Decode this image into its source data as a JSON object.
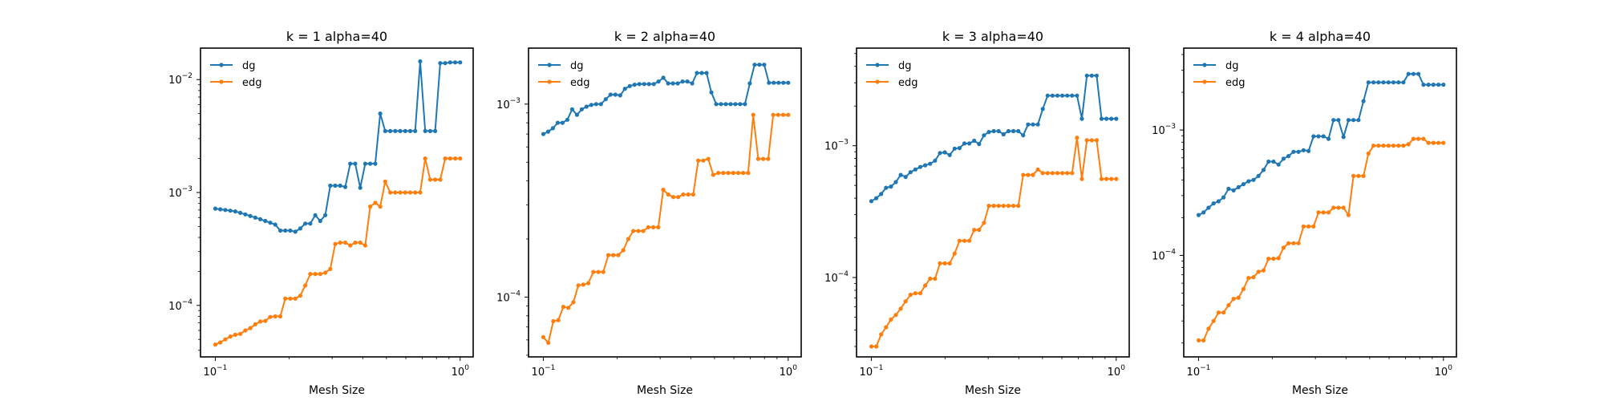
{
  "chart_data": [
    {
      "type": "line",
      "title": "k = 1 alpha=40",
      "xlabel": "Mesh Size",
      "ylabel": "",
      "xscale": "log",
      "yscale": "log",
      "xlim": [
        0.087,
        1.13
      ],
      "ylim": [
        3.5e-05,
        0.019
      ],
      "xticks": [
        {
          "base": "10",
          "exp": "−1",
          "value": 0.1
        },
        {
          "base": "10",
          "exp": "0",
          "value": 1
        }
      ],
      "yticks": [
        {
          "base": "10",
          "exp": "−4",
          "value": 0.0001
        },
        {
          "base": "10",
          "exp": "−3",
          "value": 0.001
        },
        {
          "base": "10",
          "exp": "−2",
          "value": 0.01
        }
      ],
      "legend_position": "top-left",
      "grid": false,
      "series": [
        {
          "name": "dg",
          "color": "#1f77b4",
          "values": [
            0.00072,
            0.00071,
            0.0007,
            0.00069,
            0.00068,
            0.00066,
            0.00064,
            0.00062,
            0.0006,
            0.00058,
            0.00056,
            0.00054,
            0.00052,
            0.00046,
            0.00046,
            0.00046,
            0.00045,
            0.00048,
            0.00053,
            0.00053,
            0.00063,
            0.00056,
            0.00063,
            0.00115,
            0.00115,
            0.00115,
            0.00112,
            0.0018,
            0.0018,
            0.0011,
            0.0018,
            0.0018,
            0.0018,
            0.005,
            0.0035,
            0.0035,
            0.0035,
            0.0035,
            0.0035,
            0.0035,
            0.0035,
            0.0145,
            0.0035,
            0.0035,
            0.0035,
            0.014,
            0.014,
            0.0142,
            0.0142,
            0.0142
          ]
        },
        {
          "name": "edg",
          "color": "#ff7f0e",
          "values": [
            4.5e-05,
            4.7e-05,
            5e-05,
            5.3e-05,
            5.5e-05,
            5.6e-05,
            6e-05,
            6.3e-05,
            6.8e-05,
            7.2e-05,
            7.3e-05,
            7.9e-05,
            8e-05,
            8e-05,
            0.000115,
            0.000115,
            0.000115,
            0.000122,
            0.00015,
            0.00019,
            0.00019,
            0.00019,
            0.000195,
            0.00021,
            0.00035,
            0.00036,
            0.00036,
            0.00034,
            0.00036,
            0.00036,
            0.00034,
            0.00075,
            0.00081,
            0.00075,
            0.00125,
            0.001,
            0.001,
            0.001,
            0.001,
            0.001,
            0.001,
            0.001,
            0.002,
            0.0013,
            0.0013,
            0.0013,
            0.002,
            0.002,
            0.002,
            0.002
          ]
        }
      ]
    },
    {
      "type": "line",
      "title": "k = 2 alpha=40",
      "xlabel": "Mesh Size",
      "ylabel": "",
      "xscale": "log",
      "yscale": "log",
      "xlim": [
        0.087,
        1.13
      ],
      "ylim": [
        4.9e-05,
        0.00195
      ],
      "xticks": [
        {
          "base": "10",
          "exp": "−1",
          "value": 0.1
        },
        {
          "base": "10",
          "exp": "0",
          "value": 1
        }
      ],
      "yticks": [
        {
          "base": "10",
          "exp": "−4",
          "value": 0.0001
        },
        {
          "base": "10",
          "exp": "−3",
          "value": 0.001
        }
      ],
      "legend_position": "top-left",
      "grid": false,
      "series": [
        {
          "name": "dg",
          "color": "#1f77b4",
          "values": [
            0.0007,
            0.00072,
            0.00075,
            0.0008,
            0.0008,
            0.00083,
            0.00094,
            0.00088,
            0.00094,
            0.00097,
            0.00099,
            0.001,
            0.001,
            0.00106,
            0.00112,
            0.00112,
            0.00111,
            0.0012,
            0.00124,
            0.00126,
            0.00127,
            0.00127,
            0.00127,
            0.00127,
            0.00131,
            0.00137,
            0.00128,
            0.00128,
            0.00128,
            0.00131,
            0.00131,
            0.00128,
            0.00145,
            0.00145,
            0.00145,
            0.00115,
            0.001,
            0.001,
            0.001,
            0.001,
            0.001,
            0.001,
            0.001,
            0.00128,
            0.0016,
            0.0016,
            0.0016,
            0.00129,
            0.00129,
            0.00129,
            0.00129,
            0.00129
          ]
        },
        {
          "name": "edg",
          "color": "#ff7f0e",
          "values": [
            6.2e-05,
            5.8e-05,
            7.5e-05,
            7.6e-05,
            8.9e-05,
            8.8e-05,
            9.4e-05,
            0.000115,
            0.000116,
            0.000118,
            0.000135,
            0.000135,
            0.000135,
            0.000165,
            0.000165,
            0.000165,
            0.000175,
            0.0002,
            0.00022,
            0.00022,
            0.00022,
            0.00023,
            0.00023,
            0.00023,
            0.00036,
            0.00034,
            0.00033,
            0.00033,
            0.00034,
            0.00034,
            0.00034,
            0.00051,
            0.00051,
            0.00052,
            0.00043,
            0.00044,
            0.00044,
            0.00044,
            0.00044,
            0.00044,
            0.00044,
            0.00044,
            0.00088,
            0.00052,
            0.00052,
            0.00052,
            0.00088,
            0.00088,
            0.00088,
            0.00088
          ]
        }
      ]
    },
    {
      "type": "line",
      "title": "k = 3 alpha=40",
      "xlabel": "Mesh Size",
      "ylabel": "",
      "xscale": "log",
      "yscale": "log",
      "xlim": [
        0.087,
        1.13
      ],
      "ylim": [
        2.5e-05,
        0.0055
      ],
      "xticks": [
        {
          "base": "10",
          "exp": "−1",
          "value": 0.1
        },
        {
          "base": "10",
          "exp": "0",
          "value": 1
        }
      ],
      "yticks": [
        {
          "base": "10",
          "exp": "−4",
          "value": 0.0001
        },
        {
          "base": "10",
          "exp": "−3",
          "value": 0.001
        }
      ],
      "legend_position": "top-left",
      "grid": false,
      "series": [
        {
          "name": "dg",
          "color": "#1f77b4",
          "values": [
            0.00038,
            0.0004,
            0.00043,
            0.00048,
            0.00049,
            0.00053,
            0.0006,
            0.00058,
            0.00063,
            0.00066,
            0.00069,
            0.00071,
            0.00073,
            0.00077,
            0.00088,
            0.00089,
            0.00085,
            0.00095,
            0.00096,
            0.00104,
            0.00104,
            0.00109,
            0.00103,
            0.0012,
            0.00127,
            0.00129,
            0.00129,
            0.00122,
            0.00129,
            0.00129,
            0.00129,
            0.0012,
            0.00145,
            0.00145,
            0.00145,
            0.0019,
            0.0024,
            0.0024,
            0.0024,
            0.0024,
            0.0024,
            0.0024,
            0.0024,
            0.0016,
            0.0034,
            0.0034,
            0.0034,
            0.0016,
            0.0016,
            0.0016,
            0.0016
          ]
        },
        {
          "name": "edg",
          "color": "#ff7f0e",
          "values": [
            3e-05,
            3e-05,
            3.7e-05,
            4.2e-05,
            4.8e-05,
            5.2e-05,
            5.8e-05,
            6.6e-05,
            7.4e-05,
            7.6e-05,
            7.6e-05,
            8.7e-05,
            9.8e-05,
            9.8e-05,
            0.000128,
            0.000128,
            0.000128,
            0.000152,
            0.00019,
            0.00019,
            0.00019,
            0.00023,
            0.00023,
            0.00026,
            0.00035,
            0.00035,
            0.00035,
            0.00035,
            0.00035,
            0.00035,
            0.00035,
            0.0006,
            0.0006,
            0.0006,
            0.00066,
            0.00062,
            0.00062,
            0.00062,
            0.00062,
            0.00062,
            0.00062,
            0.00062,
            0.00115,
            0.00056,
            0.0011,
            0.0011,
            0.0011,
            0.00056,
            0.00056,
            0.00056,
            0.00056
          ]
        }
      ]
    },
    {
      "type": "line",
      "title": "k = 4 alpha=40",
      "xlabel": "Mesh Size",
      "ylabel": "",
      "xscale": "log",
      "yscale": "log",
      "xlim": [
        0.087,
        1.13
      ],
      "ylim": [
        1.55e-05,
        0.0045
      ],
      "xticks": [
        {
          "base": "10",
          "exp": "−1",
          "value": 0.1
        },
        {
          "base": "10",
          "exp": "0",
          "value": 1
        }
      ],
      "yticks": [
        {
          "base": "10",
          "exp": "−4",
          "value": 0.0001
        },
        {
          "base": "10",
          "exp": "−3",
          "value": 0.001
        }
      ],
      "legend_position": "top-left",
      "grid": false,
      "series": [
        {
          "name": "dg",
          "color": "#1f77b4",
          "values": [
            0.00021,
            0.00022,
            0.00024,
            0.00026,
            0.00027,
            0.00029,
            0.00034,
            0.00033,
            0.00035,
            0.00037,
            0.00039,
            0.0004,
            0.00043,
            0.00048,
            0.00056,
            0.00056,
            0.00053,
            0.00059,
            0.00062,
            0.00067,
            0.00067,
            0.00069,
            0.00068,
            0.00089,
            0.00089,
            0.00089,
            0.00085,
            0.0012,
            0.0012,
            0.00088,
            0.0012,
            0.0012,
            0.0012,
            0.0017,
            0.0024,
            0.0024,
            0.0024,
            0.0024,
            0.0024,
            0.0024,
            0.0024,
            0.0024,
            0.0028,
            0.0028,
            0.0028,
            0.0023,
            0.0023,
            0.0023,
            0.0023,
            0.0023
          ]
        },
        {
          "name": "edg",
          "color": "#ff7f0e",
          "values": [
            2.1e-05,
            2.1e-05,
            2.6e-05,
            3e-05,
            3.5e-05,
            3.5e-05,
            4e-05,
            4.5e-05,
            4.6e-05,
            5.4e-05,
            6.6e-05,
            6.7e-05,
            7.4e-05,
            7.6e-05,
            9.4e-05,
            9.4e-05,
            9.5e-05,
            0.000115,
            0.000125,
            0.000125,
            0.000125,
            0.00017,
            0.00017,
            0.00017,
            0.00022,
            0.00022,
            0.00022,
            0.00024,
            0.00024,
            0.00024,
            0.00021,
            0.00043,
            0.00043,
            0.00043,
            0.00065,
            0.00075,
            0.00075,
            0.00075,
            0.00075,
            0.00075,
            0.00075,
            0.00075,
            0.00077,
            0.00085,
            0.00085,
            0.00085,
            0.00079,
            0.00079,
            0.00079,
            0.00079
          ]
        }
      ]
    }
  ]
}
